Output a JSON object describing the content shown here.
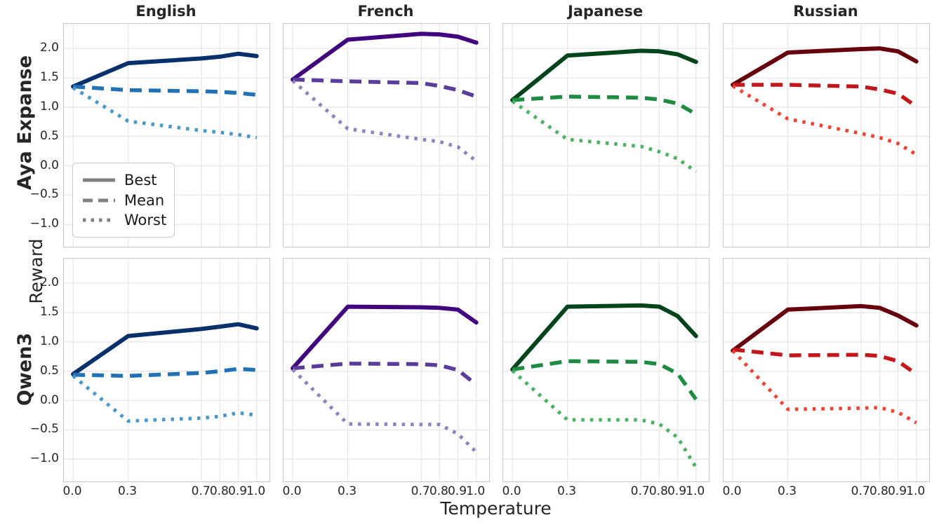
{
  "figure": {
    "col_titles": [
      "English",
      "French",
      "Japanese",
      "Russian"
    ],
    "row_labels": [
      "Aya Expanse",
      "Qwen3"
    ],
    "ylabel": "Reward",
    "xlabel": "Temperature",
    "ytick_labels": [
      "2.0",
      "1.5",
      "1.0",
      "0.5",
      "0.0",
      "−0.5",
      "−1.0"
    ],
    "xtick_labels": [
      "0.0",
      "0.3",
      "0.7",
      "0.8",
      "0.9",
      "1.0"
    ],
    "legend": {
      "entries": [
        {
          "label": "Best",
          "style": "solid"
        },
        {
          "label": "Mean",
          "style": "dashed"
        },
        {
          "label": "Worst",
          "style": "dotted"
        }
      ],
      "swatch_color": "#808080",
      "position": "lower-left of first subplot"
    },
    "grid_color": "#e7e7e7",
    "border_color": "#c9c9c9"
  },
  "chart_data": [
    {
      "type": "line",
      "row": "Aya Expanse",
      "col": "English",
      "x": [
        0.0,
        0.3,
        0.7,
        0.8,
        0.9,
        1.0
      ],
      "xticks": [
        0.0,
        0.3,
        0.7,
        0.8,
        0.9,
        1.0
      ],
      "yticks": [
        2.0,
        1.5,
        1.0,
        0.5,
        0.0,
        -0.5,
        -1.0
      ],
      "xlim": [
        -0.05,
        1.07
      ],
      "ylim": [
        -1.38,
        2.42
      ],
      "grid": true,
      "series": [
        {
          "name": "Best",
          "style": "solid",
          "color": "#08306b",
          "values": [
            1.35,
            1.75,
            1.83,
            1.86,
            1.91,
            1.87
          ]
        },
        {
          "name": "Mean",
          "style": "dashed",
          "color": "#2171b5",
          "values": [
            1.35,
            1.29,
            1.27,
            1.26,
            1.24,
            1.21
          ]
        },
        {
          "name": "Worst",
          "style": "dotted",
          "color": "#4a98c9",
          "values": [
            1.33,
            0.76,
            0.6,
            0.57,
            0.53,
            0.48
          ]
        }
      ]
    },
    {
      "type": "line",
      "row": "Aya Expanse",
      "col": "French",
      "x": [
        0.0,
        0.3,
        0.7,
        0.8,
        0.9,
        1.0
      ],
      "xticks": [
        0.0,
        0.3,
        0.7,
        0.8,
        0.9,
        1.0
      ],
      "yticks": [
        2.0,
        1.5,
        1.0,
        0.5,
        0.0,
        -0.5,
        -1.0
      ],
      "xlim": [
        -0.05,
        1.07
      ],
      "ylim": [
        -1.38,
        2.42
      ],
      "grid": true,
      "series": [
        {
          "name": "Best",
          "style": "solid",
          "color": "#41067e",
          "values": [
            1.47,
            2.15,
            2.25,
            2.24,
            2.2,
            2.1
          ]
        },
        {
          "name": "Mean",
          "style": "dashed",
          "color": "#5a3d9b",
          "values": [
            1.47,
            1.44,
            1.41,
            1.36,
            1.29,
            1.18
          ]
        },
        {
          "name": "Worst",
          "style": "dotted",
          "color": "#8c84c0",
          "values": [
            1.45,
            0.63,
            0.45,
            0.41,
            0.32,
            0.08
          ]
        }
      ]
    },
    {
      "type": "line",
      "row": "Aya Expanse",
      "col": "Japanese",
      "x": [
        0.0,
        0.3,
        0.7,
        0.8,
        0.9,
        1.0
      ],
      "xticks": [
        0.0,
        0.3,
        0.7,
        0.8,
        0.9,
        1.0
      ],
      "yticks": [
        2.0,
        1.5,
        1.0,
        0.5,
        0.0,
        -0.5,
        -1.0
      ],
      "xlim": [
        -0.05,
        1.07
      ],
      "ylim": [
        -1.38,
        2.42
      ],
      "grid": true,
      "series": [
        {
          "name": "Best",
          "style": "solid",
          "color": "#00441b",
          "values": [
            1.12,
            1.88,
            1.96,
            1.95,
            1.9,
            1.77
          ]
        },
        {
          "name": "Mean",
          "style": "dashed",
          "color": "#1f8b42",
          "values": [
            1.12,
            1.18,
            1.16,
            1.13,
            1.06,
            0.88
          ]
        },
        {
          "name": "Worst",
          "style": "dotted",
          "color": "#4cb163",
          "values": [
            1.1,
            0.45,
            0.33,
            0.24,
            0.12,
            -0.1
          ]
        }
      ]
    },
    {
      "type": "line",
      "row": "Aya Expanse",
      "col": "Russian",
      "x": [
        0.0,
        0.3,
        0.7,
        0.8,
        0.9,
        1.0
      ],
      "xticks": [
        0.0,
        0.3,
        0.7,
        0.8,
        0.9,
        1.0
      ],
      "yticks": [
        2.0,
        1.5,
        1.0,
        0.5,
        0.0,
        -0.5,
        -1.0
      ],
      "xlim": [
        -0.05,
        1.07
      ],
      "ylim": [
        -1.38,
        2.42
      ],
      "grid": true,
      "series": [
        {
          "name": "Best",
          "style": "solid",
          "color": "#67000d",
          "values": [
            1.38,
            1.93,
            1.99,
            2.0,
            1.95,
            1.78
          ]
        },
        {
          "name": "Mean",
          "style": "dashed",
          "color": "#c2181c",
          "values": [
            1.38,
            1.38,
            1.35,
            1.3,
            1.23,
            1.01
          ]
        },
        {
          "name": "Worst",
          "style": "dotted",
          "color": "#ef4433",
          "values": [
            1.36,
            0.8,
            0.55,
            0.48,
            0.38,
            0.19
          ]
        }
      ]
    },
    {
      "type": "line",
      "row": "Qwen3",
      "col": "English",
      "x": [
        0.0,
        0.3,
        0.7,
        0.8,
        0.9,
        1.0
      ],
      "xticks": [
        0.0,
        0.3,
        0.7,
        0.8,
        0.9,
        1.0
      ],
      "yticks": [
        2.0,
        1.5,
        1.0,
        0.5,
        0.0,
        -0.5,
        -1.0
      ],
      "xlim": [
        -0.05,
        1.07
      ],
      "ylim": [
        -1.38,
        2.42
      ],
      "grid": true,
      "series": [
        {
          "name": "Best",
          "style": "solid",
          "color": "#08306b",
          "values": [
            0.45,
            1.1,
            1.22,
            1.26,
            1.3,
            1.23
          ]
        },
        {
          "name": "Mean",
          "style": "dashed",
          "color": "#2171b5",
          "values": [
            0.44,
            0.42,
            0.47,
            0.5,
            0.54,
            0.52
          ]
        },
        {
          "name": "Worst",
          "style": "dotted",
          "color": "#4a98c9",
          "values": [
            0.42,
            -0.35,
            -0.3,
            -0.27,
            -0.21,
            -0.25
          ]
        }
      ]
    },
    {
      "type": "line",
      "row": "Qwen3",
      "col": "French",
      "x": [
        0.0,
        0.3,
        0.7,
        0.8,
        0.9,
        1.0
      ],
      "xticks": [
        0.0,
        0.3,
        0.7,
        0.8,
        0.9,
        1.0
      ],
      "yticks": [
        2.0,
        1.5,
        1.0,
        0.5,
        0.0,
        -0.5,
        -1.0
      ],
      "xlim": [
        -0.05,
        1.07
      ],
      "ylim": [
        -1.38,
        2.42
      ],
      "grid": true,
      "series": [
        {
          "name": "Best",
          "style": "solid",
          "color": "#41067e",
          "values": [
            0.55,
            1.6,
            1.59,
            1.58,
            1.55,
            1.33
          ]
        },
        {
          "name": "Mean",
          "style": "dashed",
          "color": "#5a3d9b",
          "values": [
            0.55,
            0.63,
            0.62,
            0.6,
            0.52,
            0.27
          ]
        },
        {
          "name": "Worst",
          "style": "dotted",
          "color": "#8c84c0",
          "values": [
            0.53,
            -0.4,
            -0.41,
            -0.41,
            -0.57,
            -0.88
          ]
        }
      ]
    },
    {
      "type": "line",
      "row": "Qwen3",
      "col": "Japanese",
      "x": [
        0.0,
        0.3,
        0.7,
        0.8,
        0.9,
        1.0
      ],
      "xticks": [
        0.0,
        0.3,
        0.7,
        0.8,
        0.9,
        1.0
      ],
      "yticks": [
        2.0,
        1.5,
        1.0,
        0.5,
        0.0,
        -0.5,
        -1.0
      ],
      "xlim": [
        -0.05,
        1.07
      ],
      "ylim": [
        -1.38,
        2.42
      ],
      "grid": true,
      "series": [
        {
          "name": "Best",
          "style": "solid",
          "color": "#00441b",
          "values": [
            0.53,
            1.6,
            1.62,
            1.6,
            1.44,
            1.1
          ]
        },
        {
          "name": "Mean",
          "style": "dashed",
          "color": "#1f8b42",
          "values": [
            0.53,
            0.67,
            0.66,
            0.62,
            0.46,
            0.02
          ]
        },
        {
          "name": "Worst",
          "style": "dotted",
          "color": "#4cb163",
          "values": [
            0.51,
            -0.33,
            -0.33,
            -0.4,
            -0.63,
            -1.14
          ]
        }
      ]
    },
    {
      "type": "line",
      "row": "Qwen3",
      "col": "Russian",
      "x": [
        0.0,
        0.3,
        0.7,
        0.8,
        0.9,
        1.0
      ],
      "xticks": [
        0.0,
        0.3,
        0.7,
        0.8,
        0.9,
        1.0
      ],
      "yticks": [
        2.0,
        1.5,
        1.0,
        0.5,
        0.0,
        -0.5,
        -1.0
      ],
      "xlim": [
        -0.05,
        1.07
      ],
      "ylim": [
        -1.38,
        2.42
      ],
      "grid": true,
      "series": [
        {
          "name": "Best",
          "style": "solid",
          "color": "#67000d",
          "values": [
            0.85,
            1.55,
            1.61,
            1.58,
            1.45,
            1.28
          ]
        },
        {
          "name": "Mean",
          "style": "dashed",
          "color": "#c2181c",
          "values": [
            0.87,
            0.77,
            0.78,
            0.76,
            0.67,
            0.45
          ]
        },
        {
          "name": "Worst",
          "style": "dotted",
          "color": "#ef4433",
          "values": [
            0.85,
            -0.15,
            -0.13,
            -0.12,
            -0.2,
            -0.38
          ]
        }
      ]
    }
  ]
}
